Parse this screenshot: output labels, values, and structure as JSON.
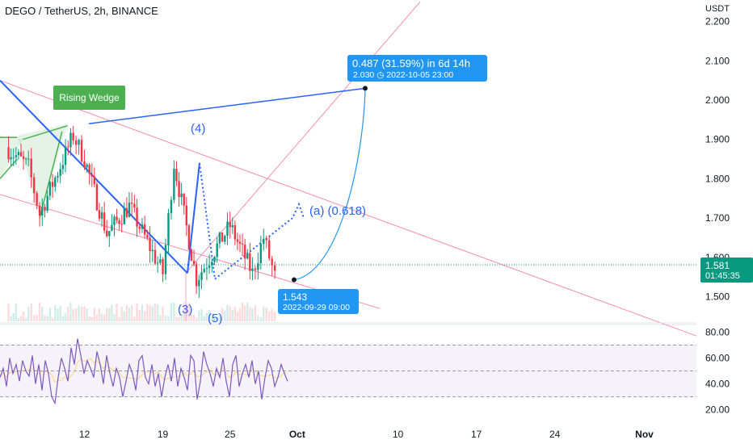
{
  "header": {
    "title": "DEGO / TetherUS, 2h, BINANCE",
    "currency": "USDT"
  },
  "colors": {
    "up": "#089981",
    "down": "#f23645",
    "trendline_blue": "#2962ff",
    "channel_pink": "#f48fb1",
    "rsi_line": "#7e57c2",
    "rsi_ma": "#fbc02d",
    "callout": "#2196f3",
    "wedge": "#4caf50"
  },
  "current_price": {
    "price": "1.581",
    "countdown": "01:45:35"
  },
  "projection": {
    "line1": "0.487 (31.59%) in 6d 14h",
    "line2": "2.030  ◷  2022-10-05  23:00"
  },
  "low_marker": {
    "price": "1.543",
    "datetime": "2022-09-29 09:00"
  },
  "pattern_label": "Rising Wedge",
  "wave_labels": {
    "w4": "(4)",
    "w3": "(3)",
    "w5": "(5)",
    "wa": "(a) (0.618)"
  },
  "chart_data": [
    {
      "type": "candlestick",
      "title": "DEGO / TetherUS, 2h, BINANCE",
      "ylabel": "USDT",
      "y_ticks": [
        "2.200",
        "2.100",
        "2.000",
        "1.900",
        "1.800",
        "1.700",
        "1.600",
        "1.500"
      ],
      "x_ticks": [
        "12",
        "19",
        "25",
        "Oct",
        "10",
        "17",
        "24",
        "Nov"
      ],
      "ylim": [
        1.47,
        2.23
      ],
      "x_range": [
        "2022-09-05",
        "2022-11-05"
      ],
      "grid": false,
      "trend_ranges": [
        {
          "from": "2022-09-05",
          "to": "2022-09-07",
          "start": 1.88,
          "end": 1.83
        },
        {
          "from": "2022-09-07",
          "to": "2022-09-08",
          "start": 1.83,
          "end": 1.71
        },
        {
          "from": "2022-09-08",
          "to": "2022-09-11",
          "start": 1.71,
          "end": 1.91
        },
        {
          "from": "2022-09-11",
          "to": "2022-09-12",
          "start": 1.91,
          "end": 1.85
        },
        {
          "from": "2022-09-12",
          "to": "2022-09-14",
          "start": 1.85,
          "end": 1.66
        },
        {
          "from": "2022-09-14",
          "to": "2022-09-16",
          "start": 1.66,
          "end": 1.73
        },
        {
          "from": "2022-09-16",
          "to": "2022-09-19",
          "start": 1.73,
          "end": 1.56
        },
        {
          "from": "2022-09-19",
          "to": "2022-09-20",
          "start": 1.56,
          "end": 1.84
        },
        {
          "from": "2022-09-20",
          "to": "2022-09-22",
          "start": 1.84,
          "end": 1.545
        },
        {
          "from": "2022-09-22",
          "to": "2022-09-25",
          "start": 1.545,
          "end": 1.68
        },
        {
          "from": "2022-09-25",
          "to": "2022-09-27",
          "start": 1.68,
          "end": 1.56
        },
        {
          "from": "2022-09-27",
          "to": "2022-09-28",
          "start": 1.56,
          "end": 1.65
        },
        {
          "from": "2022-09-28",
          "to": "2022-09-29",
          "start": 1.65,
          "end": 1.55
        }
      ],
      "last_price": 1.581,
      "projection_target": {
        "date": "2022-10-05 23:00",
        "price": 2.03,
        "change": 0.487,
        "change_pct": 31.59
      },
      "annotations": [
        "Rising Wedge",
        "(4)",
        "(3)",
        "(5)",
        "(a) (0.618)"
      ]
    },
    {
      "type": "line",
      "title": "",
      "y_ticks": [
        "80.00",
        "60.00",
        "40.00",
        "20.00"
      ],
      "ylim": [
        16,
        86
      ],
      "band": [
        30,
        70
      ],
      "midline": 50,
      "series": [
        {
          "values": [
            45,
            52,
            38,
            60,
            48,
            55,
            42,
            58,
            50,
            46,
            62,
            40,
            55,
            35,
            58,
            48,
            30,
            25,
            45,
            60,
            52,
            42,
            68,
            55,
            75,
            62,
            48,
            58,
            52,
            45,
            65,
            55,
            40,
            62,
            48,
            38,
            52,
            45,
            30,
            42,
            55,
            48,
            35,
            58,
            62,
            45,
            40,
            55,
            38,
            48,
            30,
            45,
            55,
            42,
            60,
            38,
            52,
            45,
            35,
            62,
            58,
            28,
            42,
            65,
            55,
            48,
            38,
            52,
            45,
            60,
            42,
            30,
            55,
            62,
            38,
            48,
            55,
            45,
            58,
            40,
            50,
            28,
            45,
            58,
            52,
            38,
            45,
            55,
            48,
            42
          ]
        }
      ]
    }
  ]
}
